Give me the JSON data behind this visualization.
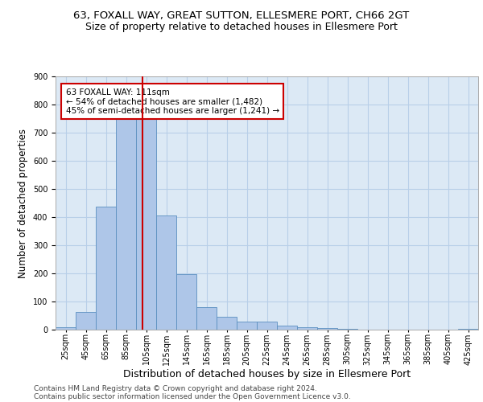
{
  "title1": "63, FOXALL WAY, GREAT SUTTON, ELLESMERE PORT, CH66 2GT",
  "title2": "Size of property relative to detached houses in Ellesmere Port",
  "xlabel": "Distribution of detached houses by size in Ellesmere Port",
  "ylabel": "Number of detached properties",
  "footnote1": "Contains HM Land Registry data © Crown copyright and database right 2024.",
  "footnote2": "Contains public sector information licensed under the Open Government Licence v3.0.",
  "bar_edges": [
    25,
    45,
    65,
    85,
    105,
    125,
    145,
    165,
    185,
    205,
    225,
    245,
    265,
    285,
    305,
    325,
    345,
    365,
    385,
    405,
    425
  ],
  "bar_heights": [
    10,
    62,
    437,
    751,
    751,
    407,
    197,
    79,
    45,
    28,
    28,
    14,
    10,
    5,
    2,
    0,
    0,
    0,
    0,
    0,
    2
  ],
  "bar_color": "#aec6e8",
  "bar_edge_color": "#5a8fc0",
  "vline_x": 111,
  "vline_color": "#cc0000",
  "annotation_text": "63 FOXALL WAY: 111sqm\n← 54% of detached houses are smaller (1,482)\n45% of semi-detached houses are larger (1,241) →",
  "annotation_box_color": "#ffffff",
  "annotation_box_edgecolor": "#cc0000",
  "ylim": [
    0,
    900
  ],
  "yticks": [
    0,
    100,
    200,
    300,
    400,
    500,
    600,
    700,
    800,
    900
  ],
  "background_color": "#ffffff",
  "plot_bg_color": "#dce9f5",
  "grid_color": "#b8cfe8",
  "title1_fontsize": 9.5,
  "title2_fontsize": 9,
  "xlabel_fontsize": 9,
  "ylabel_fontsize": 8.5,
  "tick_fontsize": 7,
  "annot_fontsize": 7.5,
  "footnote_fontsize": 6.5
}
